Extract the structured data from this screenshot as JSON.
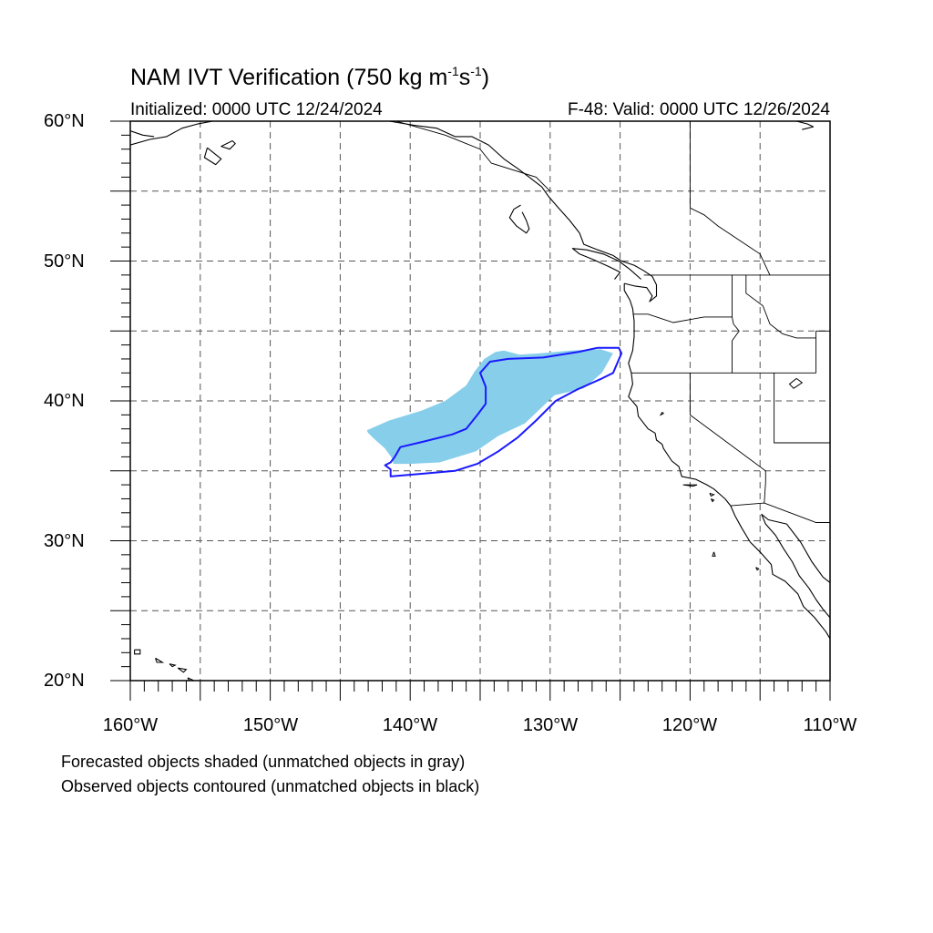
{
  "title": {
    "main": "NAM IVT Verification (750 kg m",
    "exp1": "-1",
    "mid": "s",
    "exp2": "-1",
    "close": ")"
  },
  "subtitle_left": "Initialized: 0000 UTC 12/24/2024",
  "subtitle_right": "F-48: Valid: 0000 UTC 12/26/2024",
  "y_labels": [
    "60°N",
    "50°N",
    "40°N",
    "30°N",
    "20°N"
  ],
  "x_labels": [
    "160°W",
    "150°W",
    "140°W",
    "130°W",
    "120°W",
    "110°W"
  ],
  "footnotes": [
    "Forecasted objects shaded (unmatched objects in gray)",
    "Observed objects contoured (unmatched objects in black)"
  ],
  "map": {
    "lon_range": [
      -160,
      -110
    ],
    "lat_range": [
      20,
      60
    ],
    "grid": true,
    "grid_style": "dashed",
    "colors": {
      "forecast_fill": "#87ceeb",
      "observed_contour": "#1a1aff",
      "coastline": "#000000"
    },
    "forecast_object": {
      "type": "shaded",
      "matched": true,
      "polygon": [
        [
          -143.1,
          37.9
        ],
        [
          -141.5,
          38.6
        ],
        [
          -139.2,
          39.3
        ],
        [
          -137.5,
          40.0
        ],
        [
          -136.0,
          41.1
        ],
        [
          -135.4,
          42.1
        ],
        [
          -134.7,
          43.0
        ],
        [
          -133.9,
          43.5
        ],
        [
          -133.3,
          43.6
        ],
        [
          -132.2,
          43.3
        ],
        [
          -130.7,
          43.4
        ],
        [
          -128.5,
          43.6
        ],
        [
          -126.4,
          43.7
        ],
        [
          -125.5,
          43.4
        ],
        [
          -126.3,
          42.0
        ],
        [
          -127.6,
          40.9
        ],
        [
          -129.7,
          40.4
        ],
        [
          -131.8,
          38.4
        ],
        [
          -133.7,
          37.5
        ],
        [
          -135.3,
          36.4
        ],
        [
          -137.9,
          35.6
        ],
        [
          -140.0,
          35.5
        ],
        [
          -141.2,
          35.5
        ],
        [
          -141.3,
          35.9
        ],
        [
          -141.8,
          36.6
        ],
        [
          -142.6,
          37.3
        ],
        [
          -143.0,
          37.7
        ]
      ]
    },
    "observed_object": {
      "type": "contour",
      "matched": true,
      "polygon": [
        [
          -141.4,
          34.6
        ],
        [
          -141.4,
          35.1
        ],
        [
          -141.8,
          35.4
        ],
        [
          -141.4,
          35.6
        ],
        [
          -141.1,
          36.0
        ],
        [
          -140.7,
          36.7
        ],
        [
          -139.0,
          37.1
        ],
        [
          -137.0,
          37.6
        ],
        [
          -136.0,
          38.0
        ],
        [
          -135.2,
          39.0
        ],
        [
          -134.6,
          39.8
        ],
        [
          -134.6,
          41.0
        ],
        [
          -135.0,
          42.0
        ],
        [
          -134.3,
          42.8
        ],
        [
          -133.0,
          43.0
        ],
        [
          -130.5,
          43.1
        ],
        [
          -128.0,
          43.5
        ],
        [
          -126.6,
          43.8
        ],
        [
          -125.1,
          43.8
        ],
        [
          -124.9,
          43.4
        ],
        [
          -125.5,
          42.0
        ],
        [
          -126.3,
          41.6
        ],
        [
          -128.1,
          40.8
        ],
        [
          -129.6,
          40.0
        ],
        [
          -131.0,
          38.6
        ],
        [
          -132.3,
          37.4
        ],
        [
          -133.7,
          36.4
        ],
        [
          -135.2,
          35.5
        ],
        [
          -136.8,
          35.0
        ],
        [
          -139.0,
          34.8
        ]
      ]
    },
    "coastlines": [
      [
        [
          -124.7,
          48.4
        ],
        [
          -124.7,
          47.9
        ],
        [
          -124.3,
          47.2
        ],
        [
          -124.1,
          46.6
        ],
        [
          -124.0,
          45.7
        ],
        [
          -124.0,
          44.6
        ],
        [
          -124.1,
          43.6
        ],
        [
          -124.4,
          42.7
        ],
        [
          -124.2,
          42.0
        ],
        [
          -124.1,
          41.2
        ],
        [
          -124.4,
          40.3
        ],
        [
          -123.8,
          39.6
        ],
        [
          -123.7,
          38.9
        ],
        [
          -123.0,
          38.0
        ],
        [
          -122.5,
          37.7
        ],
        [
          -122.4,
          37.2
        ],
        [
          -122.0,
          36.9
        ],
        [
          -121.9,
          36.6
        ],
        [
          -121.3,
          35.7
        ],
        [
          -120.8,
          35.3
        ],
        [
          -120.6,
          34.6
        ],
        [
          -119.6,
          34.4
        ],
        [
          -118.8,
          34.0
        ],
        [
          -118.3,
          33.7
        ],
        [
          -117.5,
          33.0
        ],
        [
          -117.1,
          32.5
        ],
        [
          -116.8,
          31.8
        ],
        [
          -116.3,
          30.9
        ],
        [
          -115.7,
          29.9
        ],
        [
          -115.0,
          29.2
        ],
        [
          -114.2,
          28.3
        ],
        [
          -114.1,
          27.6
        ],
        [
          -113.2,
          27.1
        ],
        [
          -112.3,
          26.2
        ],
        [
          -111.9,
          25.3
        ],
        [
          -111.1,
          24.5
        ],
        [
          -110.3,
          23.5
        ],
        [
          -110.0,
          23.0
        ]
      ],
      [
        [
          -114.9,
          31.9
        ],
        [
          -114.6,
          31.2
        ],
        [
          -113.9,
          30.4
        ],
        [
          -113.3,
          29.4
        ],
        [
          -112.7,
          28.5
        ],
        [
          -112.2,
          27.5
        ],
        [
          -111.5,
          26.6
        ],
        [
          -111.0,
          25.8
        ],
        [
          -110.5,
          25.1
        ],
        [
          -110.0,
          24.5
        ]
      ],
      [
        [
          -114.9,
          31.9
        ],
        [
          -114.4,
          31.5
        ],
        [
          -113.1,
          31.2
        ],
        [
          -112.1,
          29.9
        ],
        [
          -111.3,
          28.5
        ],
        [
          -110.5,
          27.4
        ],
        [
          -110.0,
          27.0
        ]
      ],
      [
        [
          -124.7,
          48.4
        ],
        [
          -123.9,
          48.2
        ],
        [
          -123.1,
          48.1
        ],
        [
          -122.7,
          47.5
        ],
        [
          -122.9,
          47.1
        ],
        [
          -122.4,
          47.5
        ],
        [
          -122.4,
          48.3
        ],
        [
          -122.7,
          48.9
        ],
        [
          -123.3,
          49.3
        ],
        [
          -124.0,
          49.7
        ],
        [
          -124.9,
          50.0
        ],
        [
          -125.5,
          50.4
        ],
        [
          -126.6,
          50.8
        ],
        [
          -127.6,
          51.2
        ],
        [
          -127.9,
          52.0
        ],
        [
          -128.6,
          52.9
        ],
        [
          -129.4,
          53.8
        ],
        [
          -130.1,
          54.6
        ],
        [
          -130.6,
          55.3
        ],
        [
          -131.5,
          56.0
        ],
        [
          -132.3,
          56.6
        ],
        [
          -133.3,
          57.3
        ],
        [
          -134.4,
          58.3
        ],
        [
          -135.6,
          58.9
        ],
        [
          -136.8,
          58.9
        ],
        [
          -138.1,
          59.5
        ],
        [
          -139.7,
          59.7
        ],
        [
          -140.9,
          59.9
        ],
        [
          -141.5,
          60.0
        ]
      ],
      [
        [
          -125.4,
          48.7
        ],
        [
          -125.0,
          49.2
        ],
        [
          -125.8,
          49.6
        ],
        [
          -126.9,
          50.1
        ],
        [
          -127.9,
          50.5
        ],
        [
          -128.4,
          50.9
        ],
        [
          -127.4,
          50.8
        ],
        [
          -126.2,
          50.5
        ],
        [
          -125.1,
          50.0
        ],
        [
          -124.3,
          49.4
        ],
        [
          -123.5,
          48.7
        ]
      ],
      [
        [
          -132.0,
          53.5
        ],
        [
          -131.7,
          52.9
        ],
        [
          -131.5,
          52.3
        ],
        [
          -131.7,
          52.0
        ],
        [
          -132.4,
          52.5
        ],
        [
          -132.9,
          53.1
        ],
        [
          -132.6,
          53.7
        ],
        [
          -132.1,
          54.0
        ]
      ],
      [
        [
          -160.0,
          58.3
        ],
        [
          -158.6,
          58.7
        ],
        [
          -157.4,
          58.9
        ],
        [
          -156.3,
          59.5
        ],
        [
          -155.2,
          59.8
        ],
        [
          -154.1,
          60.0
        ]
      ],
      [
        [
          -160.0,
          59.3
        ],
        [
          -159.1,
          59.0
        ],
        [
          -158.3,
          58.9
        ]
      ],
      [
        [
          -154.5,
          58.1
        ],
        [
          -153.5,
          57.3
        ],
        [
          -153.9,
          56.9
        ],
        [
          -154.7,
          57.4
        ],
        [
          -154.5,
          58.1
        ]
      ],
      [
        [
          -152.7,
          58.6
        ],
        [
          -153.5,
          58.2
        ],
        [
          -152.9,
          58.0
        ],
        [
          -152.5,
          58.4
        ],
        [
          -152.7,
          58.6
        ]
      ],
      [
        [
          -112.4,
          60.0
        ],
        [
          -111.6,
          59.8
        ],
        [
          -111.2,
          59.6
        ],
        [
          -112.0,
          59.4
        ]
      ]
    ],
    "hawaii": [
      [
        [
          -159.7,
          22.2
        ],
        [
          -159.3,
          22.2
        ],
        [
          -159.3,
          21.9
        ],
        [
          -159.7,
          21.9
        ],
        [
          -159.7,
          22.2
        ]
      ],
      [
        [
          -158.2,
          21.6
        ],
        [
          -157.7,
          21.3
        ],
        [
          -158.1,
          21.3
        ],
        [
          -158.2,
          21.6
        ]
      ],
      [
        [
          -157.2,
          21.2
        ],
        [
          -156.8,
          21.1
        ],
        [
          -157.0,
          21.0
        ],
        [
          -157.2,
          21.2
        ]
      ],
      [
        [
          -156.6,
          20.9
        ],
        [
          -156.0,
          20.8
        ],
        [
          -156.2,
          20.6
        ],
        [
          -156.6,
          20.9
        ]
      ],
      [
        [
          -155.9,
          20.2
        ],
        [
          -155.0,
          19.8
        ],
        [
          -155.4,
          19.3
        ],
        [
          -155.9,
          20.2
        ]
      ]
    ],
    "islands": [
      [
        [
          -120.5,
          34.0
        ],
        [
          -119.5,
          34.0
        ],
        [
          -119.8,
          33.9
        ],
        [
          -120.5,
          34.0
        ]
      ],
      [
        [
          -118.6,
          33.4
        ],
        [
          -118.3,
          33.3
        ],
        [
          -118.5,
          33.2
        ],
        [
          -118.6,
          33.4
        ]
      ],
      [
        [
          -118.5,
          33.0
        ],
        [
          -118.3,
          32.9
        ],
        [
          -118.4,
          32.8
        ],
        [
          -118.5,
          33.0
        ]
      ],
      [
        [
          -118.3,
          29.2
        ],
        [
          -118.2,
          28.9
        ],
        [
          -118.4,
          28.9
        ],
        [
          -118.3,
          29.2
        ]
      ],
      [
        [
          -115.3,
          28.1
        ],
        [
          -115.1,
          28.0
        ],
        [
          -115.2,
          27.9
        ],
        [
          -115.3,
          28.1
        ]
      ]
    ],
    "lakes": [
      [
        [
          -112.4,
          41.6
        ],
        [
          -112.0,
          41.3
        ],
        [
          -112.6,
          40.9
        ],
        [
          -112.9,
          41.2
        ],
        [
          -112.4,
          41.6
        ]
      ],
      [
        [
          -122.0,
          39.2
        ],
        [
          -121.9,
          39.1
        ],
        [
          -122.1,
          39.0
        ],
        [
          -122.0,
          39.2
        ]
      ]
    ],
    "borders": [
      [
        [
          -123.3,
          49.0
        ],
        [
          -110.0,
          49.0
        ]
      ],
      [
        [
          -124.1,
          46.2
        ],
        [
          -123.0,
          46.2
        ],
        [
          -121.2,
          45.6
        ],
        [
          -119.0,
          46.0
        ],
        [
          -117.0,
          46.0
        ]
      ],
      [
        [
          -117.0,
          49.0
        ],
        [
          -117.0,
          46.0
        ],
        [
          -116.9,
          45.5
        ],
        [
          -116.5,
          45.0
        ],
        [
          -117.0,
          44.3
        ],
        [
          -117.0,
          42.0
        ]
      ],
      [
        [
          -124.2,
          42.0
        ],
        [
          -111.0,
          42.0
        ]
      ],
      [
        [
          -120.0,
          42.0
        ],
        [
          -120.0,
          39.0
        ],
        [
          -114.6,
          35.0
        ],
        [
          -114.6,
          34.2
        ],
        [
          -114.7,
          32.7
        ]
      ],
      [
        [
          -114.0,
          42.0
        ],
        [
          -114.0,
          37.0
        ],
        [
          -110.0,
          37.0
        ]
      ],
      [
        [
          -111.0,
          45.0
        ],
        [
          -110.0,
          45.0
        ]
      ],
      [
        [
          -111.0,
          45.0
        ],
        [
          -111.0,
          42.0
        ]
      ],
      [
        [
          -117.1,
          32.5
        ],
        [
          -114.7,
          32.7
        ],
        [
          -111.0,
          31.3
        ],
        [
          -110.0,
          31.3
        ]
      ],
      [
        [
          -116.0,
          49.0
        ],
        [
          -116.0,
          47.7
        ],
        [
          -114.8,
          46.8
        ],
        [
          -114.3,
          45.5
        ],
        [
          -113.4,
          44.8
        ],
        [
          -112.4,
          44.5
        ],
        [
          -111.0,
          44.5
        ]
      ],
      [
        [
          -141.0,
          60.0
        ],
        [
          -137.5,
          59.0
        ],
        [
          -135.0,
          58.0
        ],
        [
          -134.2,
          57.0
        ],
        [
          -131.0,
          56.0
        ],
        [
          -130.0,
          55.0
        ]
      ],
      [
        [
          -120.0,
          60.0
        ],
        [
          -120.0,
          53.8
        ],
        [
          -119.0,
          53.3
        ],
        [
          -118.0,
          52.5
        ],
        [
          -116.5,
          51.5
        ],
        [
          -115.0,
          50.5
        ],
        [
          -114.3,
          49.0
        ]
      ]
    ]
  }
}
